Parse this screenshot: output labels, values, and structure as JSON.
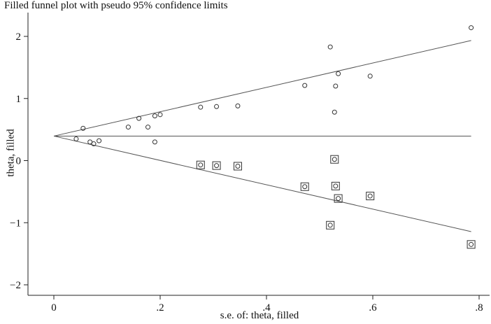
{
  "chart_data": {
    "type": "scatter",
    "title": "Filled funnel plot with pseudo 95% confidence limits",
    "xlabel": "s.e. of: theta, filled",
    "ylabel": "theta, filled",
    "xlim": [
      0,
      0.8
    ],
    "ylim": [
      -2,
      2.2
    ],
    "x_ticks": [
      0,
      0.2,
      0.4,
      0.6,
      0.8
    ],
    "x_tick_labels": [
      "0",
      ".2",
      ".4",
      ".6",
      ".8"
    ],
    "y_ticks": [
      -2,
      -1,
      0,
      1,
      2
    ],
    "y_tick_labels": [
      "−2",
      "−1",
      "0",
      "1",
      "2"
    ],
    "grid": false,
    "pooled_estimate": 0.395,
    "funnel_z": 1.96,
    "series": [
      {
        "marker": "circle",
        "points": [
          [
            0.042,
            0.35
          ],
          [
            0.055,
            0.52
          ],
          [
            0.068,
            0.3
          ],
          [
            0.075,
            0.27
          ],
          [
            0.085,
            0.32
          ],
          [
            0.14,
            0.54
          ],
          [
            0.16,
            0.68
          ],
          [
            0.177,
            0.54
          ],
          [
            0.19,
            0.72
          ],
          [
            0.19,
            0.3
          ],
          [
            0.2,
            0.74
          ],
          [
            0.276,
            0.86
          ],
          [
            0.306,
            0.87
          ],
          [
            0.346,
            0.88
          ],
          [
            0.472,
            1.21
          ],
          [
            0.52,
            1.83
          ],
          [
            0.53,
            1.2
          ],
          [
            0.535,
            1.4
          ],
          [
            0.528,
            0.78
          ],
          [
            0.595,
            1.36
          ],
          [
            0.785,
            2.14
          ]
        ]
      },
      {
        "marker": "boxed-circle",
        "points": [
          [
            0.276,
            -0.07
          ],
          [
            0.306,
            -0.08
          ],
          [
            0.346,
            -0.09
          ],
          [
            0.472,
            -0.42
          ],
          [
            0.52,
            -1.04
          ],
          [
            0.53,
            -0.41
          ],
          [
            0.535,
            -0.61
          ],
          [
            0.528,
            0.02
          ],
          [
            0.595,
            -0.57
          ],
          [
            0.785,
            -1.35
          ]
        ]
      }
    ]
  }
}
